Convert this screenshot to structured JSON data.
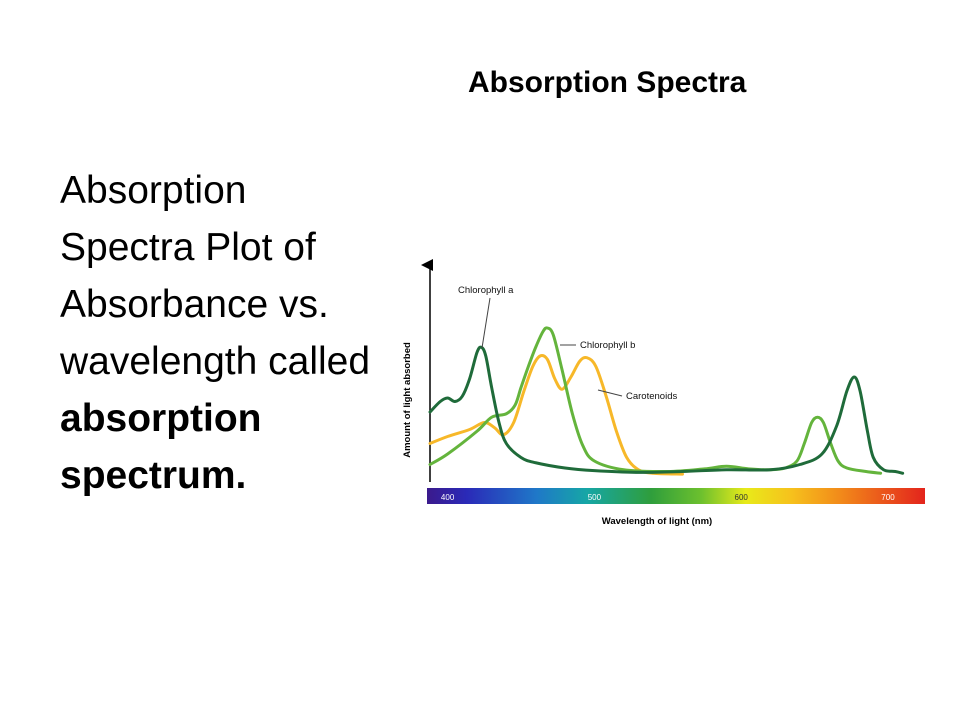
{
  "slide": {
    "title": "Absorption Spectra",
    "body_text": "Absorption Spectra Plot of Absorbance vs. wavelength called",
    "body_text_bold": "absorption spectrum."
  },
  "chart_data": {
    "type": "line",
    "title": "",
    "xlabel": "Wavelength of light (nm)",
    "ylabel": "Amount of light absorbed",
    "xlim": [
      388,
      715
    ],
    "ylim": [
      0,
      1
    ],
    "x_ticks": [
      "400",
      "500",
      "600",
      "700"
    ],
    "x_tick_values": [
      400,
      500,
      600,
      700
    ],
    "grid": false,
    "legend": "inline labels",
    "series": [
      {
        "name": "Chlorophyll a",
        "color": "#1f6b3a",
        "points": [
          [
            388,
            0.36
          ],
          [
            395,
            0.42
          ],
          [
            400,
            0.44
          ],
          [
            405,
            0.42
          ],
          [
            410,
            0.45
          ],
          [
            415,
            0.55
          ],
          [
            420,
            0.7
          ],
          [
            423,
            0.73
          ],
          [
            426,
            0.68
          ],
          [
            430,
            0.5
          ],
          [
            435,
            0.3
          ],
          [
            440,
            0.18
          ],
          [
            450,
            0.1
          ],
          [
            460,
            0.07
          ],
          [
            480,
            0.04
          ],
          [
            500,
            0.025
          ],
          [
            530,
            0.015
          ],
          [
            560,
            0.02
          ],
          [
            590,
            0.03
          ],
          [
            620,
            0.03
          ],
          [
            640,
            0.06
          ],
          [
            655,
            0.12
          ],
          [
            665,
            0.28
          ],
          [
            672,
            0.48
          ],
          [
            677,
            0.56
          ],
          [
            681,
            0.48
          ],
          [
            686,
            0.25
          ],
          [
            690,
            0.1
          ],
          [
            697,
            0.03
          ],
          [
            705,
            0.02
          ],
          [
            710,
            0.01
          ]
        ]
      },
      {
        "name": "Chlorophyll b",
        "color": "#64b43c",
        "points": [
          [
            388,
            0.06
          ],
          [
            400,
            0.12
          ],
          [
            420,
            0.25
          ],
          [
            430,
            0.33
          ],
          [
            440,
            0.35
          ],
          [
            446,
            0.4
          ],
          [
            450,
            0.5
          ],
          [
            455,
            0.62
          ],
          [
            460,
            0.73
          ],
          [
            465,
            0.82
          ],
          [
            468,
            0.84
          ],
          [
            472,
            0.8
          ],
          [
            478,
            0.6
          ],
          [
            485,
            0.35
          ],
          [
            492,
            0.17
          ],
          [
            500,
            0.08
          ],
          [
            520,
            0.03
          ],
          [
            550,
            0.02
          ],
          [
            575,
            0.035
          ],
          [
            590,
            0.05
          ],
          [
            605,
            0.035
          ],
          [
            620,
            0.03
          ],
          [
            630,
            0.04
          ],
          [
            638,
            0.08
          ],
          [
            643,
            0.18
          ],
          [
            648,
            0.3
          ],
          [
            652,
            0.33
          ],
          [
            656,
            0.3
          ],
          [
            661,
            0.18
          ],
          [
            666,
            0.08
          ],
          [
            672,
            0.04
          ],
          [
            685,
            0.02
          ],
          [
            695,
            0.01
          ]
        ]
      },
      {
        "name": "Carotenoids",
        "color": "#f7b829",
        "points": [
          [
            388,
            0.18
          ],
          [
            400,
            0.22
          ],
          [
            415,
            0.26
          ],
          [
            425,
            0.3
          ],
          [
            432,
            0.27
          ],
          [
            438,
            0.23
          ],
          [
            445,
            0.3
          ],
          [
            452,
            0.48
          ],
          [
            458,
            0.62
          ],
          [
            463,
            0.68
          ],
          [
            468,
            0.66
          ],
          [
            473,
            0.55
          ],
          [
            478,
            0.49
          ],
          [
            484,
            0.56
          ],
          [
            490,
            0.65
          ],
          [
            495,
            0.67
          ],
          [
            501,
            0.62
          ],
          [
            508,
            0.45
          ],
          [
            515,
            0.25
          ],
          [
            522,
            0.1
          ],
          [
            530,
            0.03
          ],
          [
            540,
            0.01
          ],
          [
            560,
            0.005
          ]
        ]
      }
    ],
    "annotations": [
      {
        "text": "Chlorophyll a",
        "series": "Chlorophyll a"
      },
      {
        "text": "Chlorophyll b",
        "series": "Chlorophyll b"
      },
      {
        "text": "Carotenoids",
        "series": "Carotenoids"
      }
    ]
  }
}
